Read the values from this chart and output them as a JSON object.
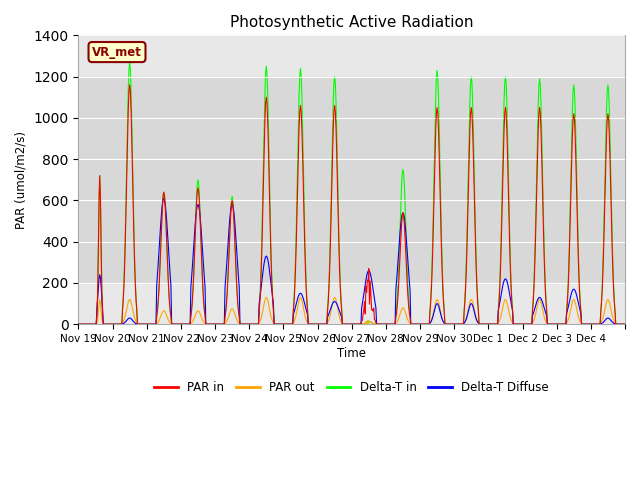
{
  "title": "Photosynthetic Active Radiation",
  "ylabel": "PAR (umol/m2/s)",
  "xlabel": "Time",
  "annotation": "VR_met",
  "ylim": [
    0,
    1400
  ],
  "yticks": [
    0,
    200,
    400,
    600,
    800,
    1000,
    1200,
    1400
  ],
  "legend": [
    "PAR in",
    "PAR out",
    "Delta-T in",
    "Delta-T Diffuse"
  ],
  "colors": [
    "red",
    "orange",
    "lime",
    "blue"
  ],
  "n_days": 16,
  "pts_per_day": 48,
  "tick_labels": [
    "Nov 19",
    "Nov 20",
    "Nov 21",
    "Nov 22",
    "Nov 23",
    "Nov 24",
    "Nov 25",
    "Nov 26",
    "Nov 27",
    "Nov 28",
    "Nov 29",
    "Nov 30",
    "Dec 1",
    "Dec 2",
    "Dec 3",
    "Dec 4"
  ],
  "day_params": [
    {
      "green": 720,
      "red": 720,
      "blue": 240,
      "orange": 120,
      "rise": 26,
      "set": 34,
      "cloudy": false
    },
    {
      "green": 1270,
      "red": 1160,
      "blue": 30,
      "orange": 120,
      "rise": 14,
      "set": 34,
      "cloudy": false
    },
    {
      "green": 640,
      "red": 640,
      "blue": 610,
      "orange": 65,
      "rise": 14,
      "set": 34,
      "cloudy": false
    },
    {
      "green": 700,
      "red": 660,
      "blue": 580,
      "orange": 65,
      "rise": 14,
      "set": 34,
      "cloudy": false
    },
    {
      "green": 620,
      "red": 600,
      "blue": 580,
      "orange": 75,
      "rise": 14,
      "set": 34,
      "cloudy": false
    },
    {
      "green": 1250,
      "red": 1100,
      "blue": 330,
      "orange": 130,
      "rise": 14,
      "set": 34,
      "cloudy": false
    },
    {
      "green": 1240,
      "red": 1060,
      "blue": 150,
      "orange": 130,
      "rise": 14,
      "set": 34,
      "cloudy": false
    },
    {
      "green": 1200,
      "red": 1060,
      "blue": 110,
      "orange": 130,
      "rise": 14,
      "set": 34,
      "cloudy": false
    },
    {
      "green": 20,
      "red": 320,
      "blue": 260,
      "orange": 20,
      "rise": 14,
      "set": 34,
      "cloudy": true
    },
    {
      "green": 750,
      "red": 540,
      "blue": 540,
      "orange": 80,
      "rise": 14,
      "set": 34,
      "cloudy": false
    },
    {
      "green": 1230,
      "red": 1050,
      "blue": 100,
      "orange": 120,
      "rise": 14,
      "set": 34,
      "cloudy": false
    },
    {
      "green": 1200,
      "red": 1050,
      "blue": 100,
      "orange": 120,
      "rise": 14,
      "set": 34,
      "cloudy": false
    },
    {
      "green": 1200,
      "red": 1050,
      "blue": 220,
      "orange": 120,
      "rise": 14,
      "set": 34,
      "cloudy": false
    },
    {
      "green": 1190,
      "red": 1050,
      "blue": 130,
      "orange": 120,
      "rise": 14,
      "set": 34,
      "cloudy": false
    },
    {
      "green": 1160,
      "red": 1020,
      "blue": 170,
      "orange": 120,
      "rise": 14,
      "set": 34,
      "cloudy": false
    },
    {
      "green": 1160,
      "red": 1020,
      "blue": 30,
      "orange": 120,
      "rise": 14,
      "set": 34,
      "cloudy": false
    }
  ],
  "facecolor": "#e8e8e8",
  "shading_band": [
    200,
    1200
  ],
  "shading_color": "#d8d8d8",
  "grid_color": "white"
}
